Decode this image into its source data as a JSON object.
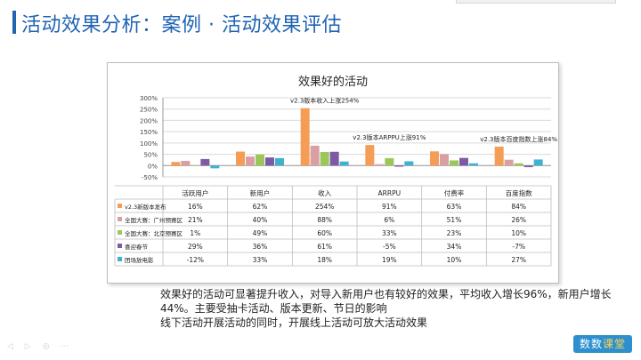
{
  "slide": {
    "title": "活动效果分析：案例 · 活动效果评估"
  },
  "notes": [
    "效果好的活动可显著提升收入，对导入新用户也有较好的效果，平均收入增长96%，新用户增长44%。主要受抽卡活动、版本更新、节日的影响",
    "线下活动开展活动的同时，开展线上活动可放大活动效果"
  ],
  "brand": {
    "part1": "数数",
    "part2": "课堂"
  },
  "chart_data": {
    "type": "bar",
    "title": "效果好的活动",
    "categories": [
      "活跃用户",
      "新用户",
      "收入",
      "ARRPU",
      "付费率",
      "百度指数"
    ],
    "ylim": [
      -50,
      300
    ],
    "yticks": [
      -50,
      0,
      50,
      100,
      150,
      200,
      250,
      300
    ],
    "ytick_labels": [
      "-50%",
      "0%",
      "50%",
      "100%",
      "150%",
      "200%",
      "250%",
      "300%"
    ],
    "value_suffix": "%",
    "grid": true,
    "legend": "table",
    "series": [
      {
        "name": "v2.3新版本发布",
        "color": "#f59d56",
        "values": [
          16,
          62,
          254,
          91,
          63,
          84
        ]
      },
      {
        "name": "全国大赛：广州预赛区",
        "color": "#d9a0a4",
        "values": [
          21,
          40,
          88,
          6,
          51,
          26
        ]
      },
      {
        "name": "全国大赛：北京预赛区",
        "color": "#9bc75a",
        "values": [
          1,
          49,
          60,
          33,
          23,
          10
        ]
      },
      {
        "name": "喜迎春节",
        "color": "#7e5aa6",
        "values": [
          29,
          36,
          61,
          -5,
          34,
          -7
        ]
      },
      {
        "name": "团场放电影",
        "color": "#3fb2cf",
        "values": [
          -12,
          33,
          18,
          19,
          10,
          27
        ]
      }
    ],
    "annotations": [
      {
        "text": "v2.3版本收入上涨254%",
        "category": "收入",
        "value": 254
      },
      {
        "text": "v2.3版本ARPPU上涨91%",
        "category": "ARRPU",
        "value": 91
      },
      {
        "text": "v2.3版本百度指数上涨84%",
        "category": "百度指数",
        "value": 84
      }
    ]
  }
}
